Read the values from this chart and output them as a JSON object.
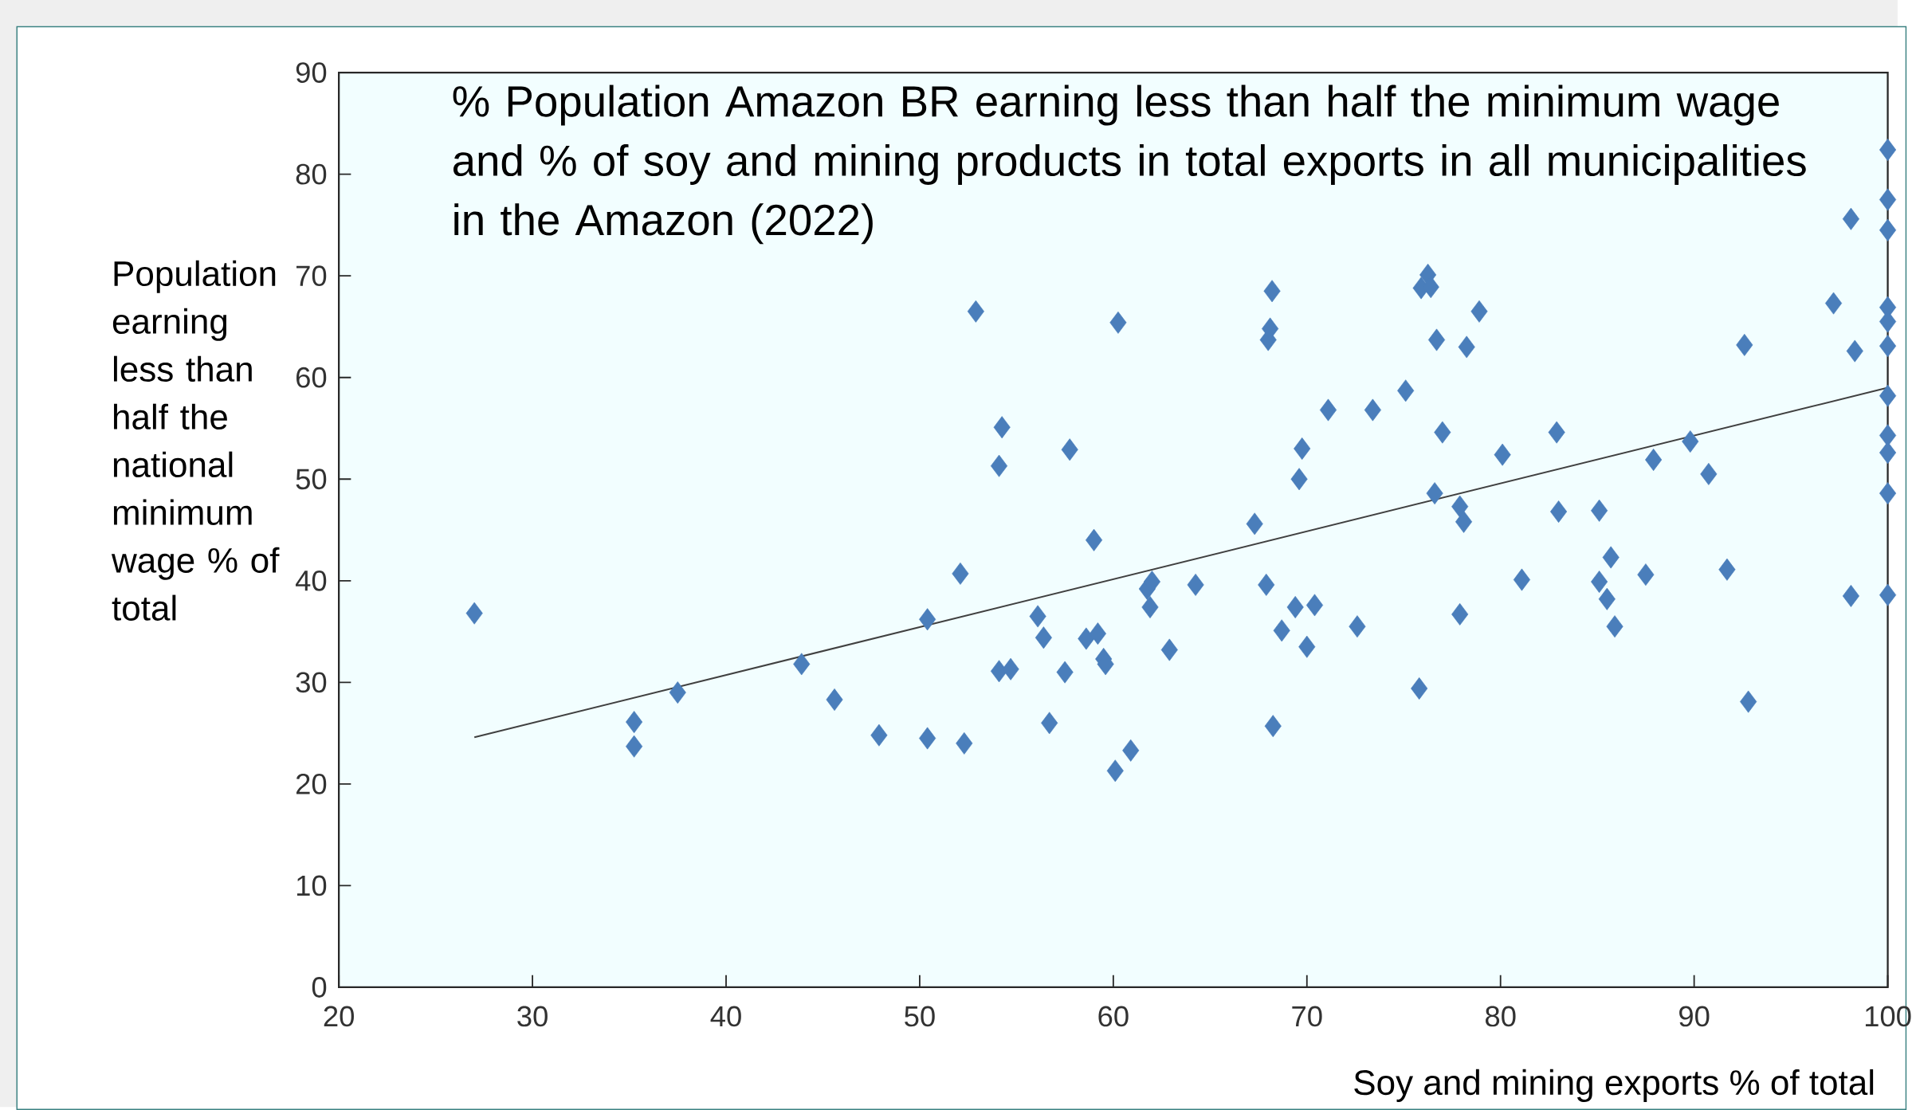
{
  "chart_data": {
    "type": "scatter",
    "title": "% Population Amazon BR earning less than half the minimum wage and % of soy and mining products in total exports in all municipalities in the Amazon (2022)",
    "xlabel": "Soy and mining exports % of total",
    "ylabel": "Population earning less than half the national minimum wage % of total",
    "xlim": [
      20,
      100
    ],
    "ylim": [
      0,
      90
    ],
    "xticks": [
      20,
      30,
      40,
      50,
      60,
      70,
      80,
      90,
      100
    ],
    "yticks": [
      0,
      10,
      20,
      30,
      40,
      50,
      60,
      70,
      80,
      90
    ],
    "grid": false,
    "series": [
      {
        "marker": "diamond",
        "color": "#4a7ebb",
        "x": [
          27.0,
          35.25,
          35.25,
          37.5,
          43.9,
          45.6,
          47.9,
          50.4,
          50.4,
          52.1,
          52.3,
          52.9,
          54.25,
          54.1,
          54.1,
          54.7,
          56.1,
          56.4,
          56.7,
          57.5,
          57.75,
          58.6,
          59.2,
          59.0,
          59.5,
          59.6,
          60.1,
          60.25,
          60.9,
          61.75,
          62.0,
          61.9,
          62.9,
          64.25,
          67.3,
          67.9,
          68.0,
          68.1,
          68.2,
          68.25,
          68.7,
          69.6,
          69.4,
          69.75,
          70.0,
          70.4,
          71.1,
          72.6,
          73.4,
          75.1,
          75.8,
          75.9,
          76.25,
          76.4,
          76.7,
          76.6,
          77.0,
          77.9,
          77.9,
          78.1,
          78.25,
          78.9,
          80.1,
          81.1,
          82.9,
          83.0,
          85.1,
          85.1,
          85.5,
          85.7,
          85.9,
          87.5,
          87.9,
          89.8,
          90.75,
          91.7,
          92.8,
          92.6,
          97.2,
          98.1,
          98.1,
          98.3,
          100,
          100,
          100,
          100,
          100,
          100,
          100,
          100,
          100,
          100,
          100
        ],
        "values": [
          36.8,
          26.1,
          23.7,
          29.0,
          31.8,
          28.3,
          24.8,
          36.2,
          24.5,
          40.7,
          24.0,
          66.5,
          55.1,
          51.3,
          31.1,
          31.3,
          36.5,
          34.4,
          26.0,
          31.0,
          52.9,
          34.3,
          34.8,
          44.0,
          32.3,
          31.8,
          21.3,
          65.4,
          23.3,
          39.2,
          39.9,
          37.4,
          33.2,
          39.6,
          45.6,
          39.6,
          63.7,
          64.8,
          68.5,
          25.7,
          35.1,
          50.0,
          37.4,
          53.0,
          33.5,
          37.6,
          56.8,
          35.5,
          56.8,
          58.7,
          29.4,
          68.8,
          70.1,
          68.9,
          63.7,
          48.6,
          54.6,
          36.7,
          47.3,
          45.8,
          63.0,
          66.5,
          52.4,
          40.1,
          54.6,
          46.8,
          39.9,
          46.9,
          38.2,
          42.3,
          35.5,
          40.6,
          51.9,
          53.7,
          50.5,
          41.1,
          28.1,
          63.2,
          67.3,
          38.5,
          75.6,
          62.6,
          82.4,
          77.5,
          74.5,
          66.9,
          65.5,
          63.1,
          58.2,
          54.3,
          52.6,
          48.6,
          38.6
        ]
      },
      {
        "type": "line",
        "marker": "none",
        "line_style": "solid",
        "color": "#404040",
        "x": [
          27,
          100
        ],
        "values": [
          24.6,
          59.0
        ]
      }
    ]
  }
}
